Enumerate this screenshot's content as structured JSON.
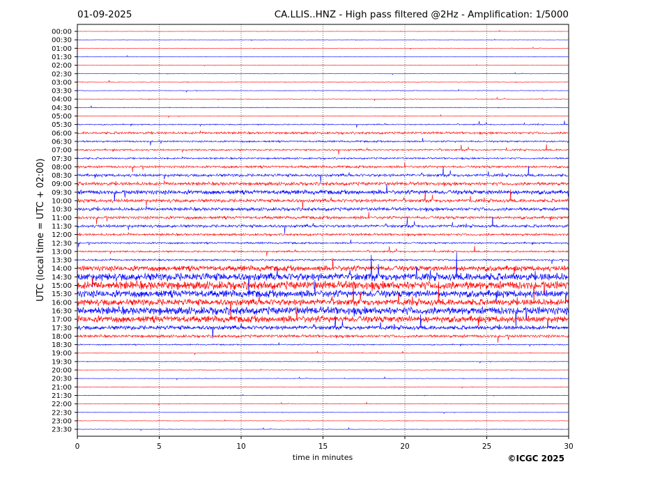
{
  "header": {
    "date": "01-09-2025",
    "title": "CA.LLIS..HNZ - High pass filtered @2Hz - Amplification: 1/5000"
  },
  "footer": {
    "copyright": "©ICGC 2025"
  },
  "chart_data": {
    "type": "line",
    "title": "CA.LLIS..HNZ - High pass filtered @2Hz - Amplification: 1/5000",
    "xlabel": "time in minutes",
    "ylabel": "UTC (local time = UTC + 02:00)",
    "xlim": [
      0,
      30
    ],
    "x_ticks": [
      0,
      5,
      10,
      15,
      20,
      25,
      30
    ],
    "x_tick_labels": [
      "0",
      "5",
      "10",
      "15",
      "20",
      "25",
      "30"
    ],
    "grid": "vertical dotted lines at x ticks",
    "row_labels": [
      "00:00",
      "00:30",
      "01:00",
      "01:30",
      "02:00",
      "02:30",
      "03:00",
      "03:30",
      "04:00",
      "04:30",
      "05:00",
      "05:30",
      "06:00",
      "06:30",
      "07:00",
      "07:30",
      "08:00",
      "08:30",
      "09:00",
      "09:30",
      "10:00",
      "10:30",
      "11:00",
      "11:30",
      "12:00",
      "12:30",
      "13:00",
      "13:30",
      "14:00",
      "14:30",
      "15:00",
      "15:30",
      "16:00",
      "16:30",
      "17:00",
      "17:30",
      "18:00",
      "18:30",
      "19:00",
      "19:30",
      "20:00",
      "20:30",
      "21:00",
      "21:30",
      "22:00",
      "22:30",
      "23:00",
      "23:30"
    ],
    "series_colors": [
      "#ff0000",
      "#0000ff"
    ],
    "row_amplitude": [
      0.3,
      0.3,
      0.3,
      0.3,
      0.3,
      0.3,
      0.5,
      0.5,
      0.5,
      0.5,
      0.5,
      1.0,
      2.0,
      1.5,
      1.5,
      1.5,
      2.0,
      2.5,
      3.0,
      3.5,
      3.0,
      3.0,
      2.5,
      2.5,
      2.0,
      1.5,
      1.5,
      1.5,
      4.5,
      6.5,
      7.0,
      6.0,
      5.5,
      6.5,
      5.5,
      3.5,
      2.5,
      1.0,
      0.5,
      0.5,
      0.4,
      0.4,
      0.4,
      0.4,
      0.4,
      0.4,
      0.4,
      0.4
    ]
  }
}
